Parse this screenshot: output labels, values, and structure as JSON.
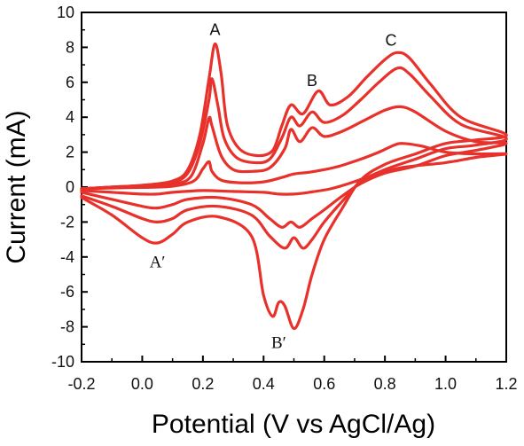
{
  "chart_data": {
    "type": "line",
    "title": "",
    "xlabel": "Potential (V vs AgCl/Ag)",
    "ylabel": "Current (mA)",
    "xlim": [
      -0.2,
      1.2
    ],
    "ylim": [
      -10,
      10
    ],
    "x_ticks": [
      "-0.2",
      "0.0",
      "0.2",
      "0.4",
      "0.6",
      "0.8",
      "1.0",
      "1.2"
    ],
    "y_ticks": [
      "10",
      "8",
      "6",
      "4",
      "2",
      "0",
      "-2",
      "-4",
      "-6",
      "-8",
      "-10"
    ],
    "grid": false,
    "legend": "none",
    "line_color": "#e8312a",
    "annotations": [
      {
        "text": "A",
        "x": 0.24,
        "y": 9.0
      },
      {
        "text": "B",
        "x": 0.56,
        "y": 6.1
      },
      {
        "text": "C",
        "x": 0.82,
        "y": 8.4
      },
      {
        "text": "A′",
        "x": 0.05,
        "y": -4.3
      },
      {
        "text": "B′",
        "x": 0.45,
        "y": -8.9
      }
    ],
    "series": [
      {
        "values": [
          [
            -0.2,
            -0.1
          ],
          [
            -0.1,
            -0.05
          ],
          [
            0.0,
            -0.02
          ],
          [
            0.1,
            0.05
          ],
          [
            0.17,
            0.35
          ],
          [
            0.2,
            1.05
          ],
          [
            0.22,
            1.45
          ],
          [
            0.23,
            0.9
          ],
          [
            0.26,
            0.4
          ],
          [
            0.32,
            0.25
          ],
          [
            0.4,
            0.3
          ],
          [
            0.46,
            0.55
          ],
          [
            0.5,
            0.75
          ],
          [
            0.55,
            0.85
          ],
          [
            0.6,
            1.0
          ],
          [
            0.65,
            1.2
          ],
          [
            0.72,
            1.6
          ],
          [
            0.78,
            2.0
          ],
          [
            0.83,
            2.4
          ],
          [
            0.86,
            2.5
          ],
          [
            0.92,
            2.35
          ],
          [
            1.0,
            2.0
          ],
          [
            1.1,
            1.9
          ],
          [
            1.2,
            1.9
          ],
          [
            1.1,
            1.7
          ],
          [
            1.0,
            1.4
          ],
          [
            0.85,
            1.1
          ],
          [
            0.75,
            0.6
          ],
          [
            0.68,
            0.2
          ],
          [
            0.62,
            -0.1
          ],
          [
            0.55,
            -0.3
          ],
          [
            0.5,
            -0.4
          ],
          [
            0.45,
            -0.4
          ],
          [
            0.4,
            -0.3
          ],
          [
            0.3,
            -0.25
          ],
          [
            0.2,
            -0.2
          ],
          [
            0.1,
            -0.3
          ],
          [
            0.05,
            -0.4
          ],
          [
            0.0,
            -0.4
          ],
          [
            -0.1,
            -0.3
          ],
          [
            -0.2,
            -0.2
          ]
        ]
      },
      {
        "values": [
          [
            -0.2,
            -0.1
          ],
          [
            -0.1,
            0.0
          ],
          [
            0.0,
            0.05
          ],
          [
            0.1,
            0.2
          ],
          [
            0.16,
            0.6
          ],
          [
            0.2,
            2.5
          ],
          [
            0.22,
            3.95
          ],
          [
            0.23,
            3.5
          ],
          [
            0.26,
            1.8
          ],
          [
            0.3,
            1.0
          ],
          [
            0.36,
            0.9
          ],
          [
            0.42,
            1.1
          ],
          [
            0.47,
            2.2
          ],
          [
            0.49,
            3.3
          ],
          [
            0.52,
            2.6
          ],
          [
            0.56,
            3.4
          ],
          [
            0.6,
            2.9
          ],
          [
            0.66,
            3.2
          ],
          [
            0.73,
            3.8
          ],
          [
            0.8,
            4.4
          ],
          [
            0.85,
            4.6
          ],
          [
            0.9,
            4.3
          ],
          [
            1.0,
            3.2
          ],
          [
            1.1,
            2.6
          ],
          [
            1.2,
            2.5
          ],
          [
            1.1,
            2.1
          ],
          [
            1.0,
            1.8
          ],
          [
            0.9,
            1.2
          ],
          [
            0.8,
            0.8
          ],
          [
            0.72,
            0.2
          ],
          [
            0.66,
            -0.5
          ],
          [
            0.6,
            -1.3
          ],
          [
            0.56,
            -1.8
          ],
          [
            0.52,
            -2.3
          ],
          [
            0.49,
            -2.0
          ],
          [
            0.46,
            -2.3
          ],
          [
            0.42,
            -1.8
          ],
          [
            0.36,
            -1.0
          ],
          [
            0.25,
            -0.6
          ],
          [
            0.15,
            -0.7
          ],
          [
            0.1,
            -1.0
          ],
          [
            0.05,
            -1.2
          ],
          [
            0.0,
            -1.1
          ],
          [
            -0.1,
            -0.7
          ],
          [
            -0.2,
            -0.3
          ]
        ]
      },
      {
        "values": [
          [
            -0.2,
            -0.1
          ],
          [
            -0.1,
            0.0
          ],
          [
            0.0,
            0.1
          ],
          [
            0.1,
            0.3
          ],
          [
            0.15,
            0.8
          ],
          [
            0.19,
            2.5
          ],
          [
            0.22,
            5.0
          ],
          [
            0.23,
            6.2
          ],
          [
            0.25,
            4.6
          ],
          [
            0.27,
            2.8
          ],
          [
            0.31,
            1.7
          ],
          [
            0.37,
            1.4
          ],
          [
            0.42,
            1.6
          ],
          [
            0.46,
            2.8
          ],
          [
            0.49,
            4.0
          ],
          [
            0.52,
            3.5
          ],
          [
            0.56,
            4.3
          ],
          [
            0.6,
            3.7
          ],
          [
            0.66,
            4.1
          ],
          [
            0.72,
            5.0
          ],
          [
            0.78,
            6.0
          ],
          [
            0.84,
            6.8
          ],
          [
            0.88,
            6.5
          ],
          [
            0.95,
            5.2
          ],
          [
            1.05,
            3.6
          ],
          [
            1.2,
            2.8
          ],
          [
            1.1,
            2.4
          ],
          [
            1.0,
            2.2
          ],
          [
            0.9,
            1.6
          ],
          [
            0.8,
            1.0
          ],
          [
            0.72,
            0.3
          ],
          [
            0.66,
            -0.8
          ],
          [
            0.6,
            -2.0
          ],
          [
            0.56,
            -3.0
          ],
          [
            0.53,
            -3.5
          ],
          [
            0.5,
            -2.9
          ],
          [
            0.47,
            -3.5
          ],
          [
            0.42,
            -2.8
          ],
          [
            0.36,
            -1.6
          ],
          [
            0.25,
            -1.1
          ],
          [
            0.15,
            -1.3
          ],
          [
            0.1,
            -1.8
          ],
          [
            0.05,
            -2.0
          ],
          [
            0.0,
            -1.8
          ],
          [
            -0.1,
            -1.1
          ],
          [
            -0.2,
            -0.5
          ]
        ]
      },
      {
        "values": [
          [
            -0.2,
            -0.1
          ],
          [
            -0.1,
            0.0
          ],
          [
            0.0,
            0.1
          ],
          [
            0.1,
            0.35
          ],
          [
            0.15,
            1.0
          ],
          [
            0.19,
            3.0
          ],
          [
            0.22,
            6.2
          ],
          [
            0.24,
            8.2
          ],
          [
            0.26,
            6.5
          ],
          [
            0.28,
            3.6
          ],
          [
            0.32,
            2.2
          ],
          [
            0.38,
            1.8
          ],
          [
            0.43,
            2.1
          ],
          [
            0.46,
            3.5
          ],
          [
            0.49,
            4.7
          ],
          [
            0.53,
            4.2
          ],
          [
            0.58,
            5.5
          ],
          [
            0.62,
            4.7
          ],
          [
            0.68,
            5.2
          ],
          [
            0.74,
            6.3
          ],
          [
            0.8,
            7.3
          ],
          [
            0.84,
            7.7
          ],
          [
            0.88,
            7.4
          ],
          [
            0.95,
            5.9
          ],
          [
            1.05,
            4.0
          ],
          [
            1.2,
            3.0
          ],
          [
            1.1,
            2.7
          ],
          [
            1.0,
            2.5
          ],
          [
            0.9,
            1.9
          ],
          [
            0.8,
            1.3
          ],
          [
            0.72,
            0.4
          ],
          [
            0.66,
            -1.2
          ],
          [
            0.6,
            -3.0
          ],
          [
            0.56,
            -5.0
          ],
          [
            0.53,
            -7.0
          ],
          [
            0.5,
            -8.1
          ],
          [
            0.47,
            -6.8
          ],
          [
            0.45,
            -6.6
          ],
          [
            0.43,
            -7.4
          ],
          [
            0.4,
            -6.2
          ],
          [
            0.36,
            -2.8
          ],
          [
            0.25,
            -1.7
          ],
          [
            0.15,
            -2.0
          ],
          [
            0.1,
            -2.7
          ],
          [
            0.05,
            -3.2
          ],
          [
            0.0,
            -2.9
          ],
          [
            -0.1,
            -1.6
          ],
          [
            -0.2,
            -0.6
          ]
        ]
      }
    ]
  }
}
